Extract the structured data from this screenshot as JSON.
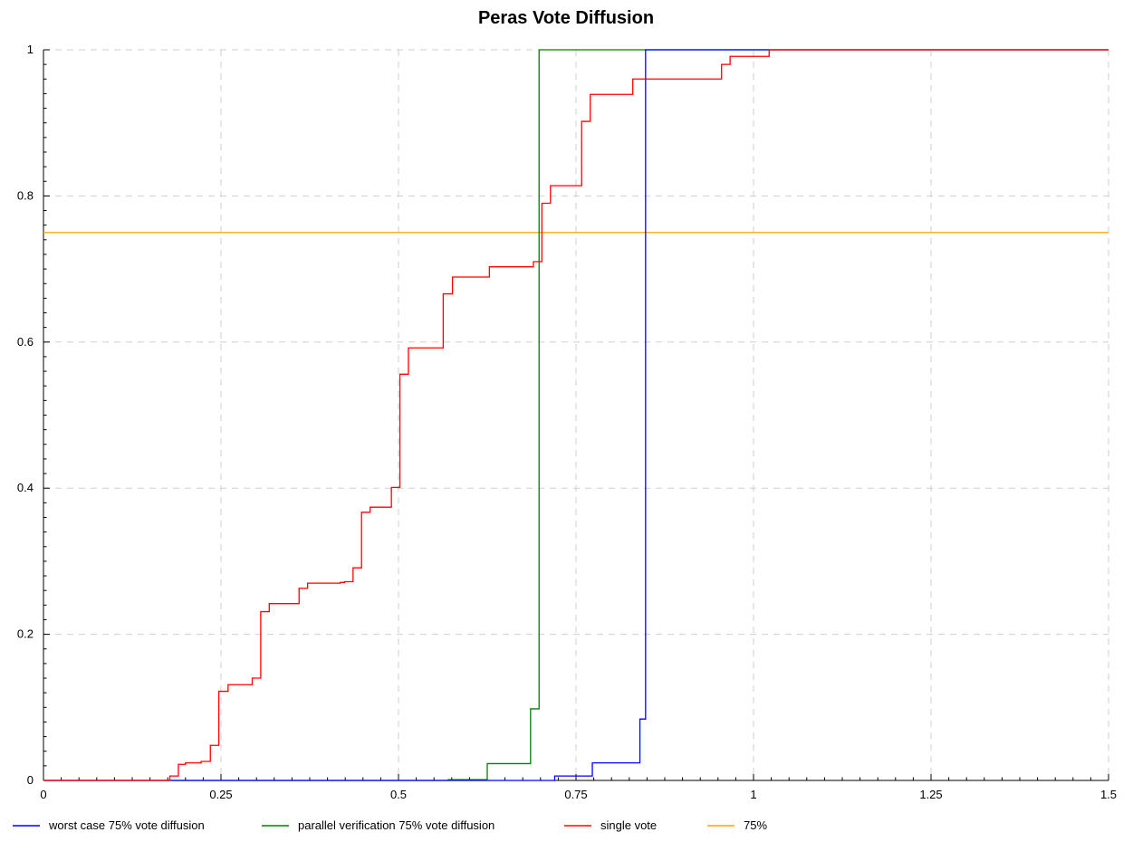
{
  "chart_data": {
    "type": "line",
    "title": "Peras Vote Diffusion",
    "xlabel": "",
    "ylabel": "",
    "xlim": [
      0,
      1.5
    ],
    "ylim": [
      0,
      1
    ],
    "x_ticks": [
      {
        "value": 0,
        "label": "0"
      },
      {
        "value": 0.25,
        "label": "0.25"
      },
      {
        "value": 0.5,
        "label": "0.5"
      },
      {
        "value": 0.75,
        "label": "0.75"
      },
      {
        "value": 1,
        "label": "1"
      },
      {
        "value": 1.25,
        "label": "1.25"
      },
      {
        "value": 1.5,
        "label": "1.5"
      }
    ],
    "y_ticks": [
      {
        "value": 0,
        "label": "0"
      },
      {
        "value": 0.2,
        "label": "0.2"
      },
      {
        "value": 0.4,
        "label": "0.4"
      },
      {
        "value": 0.6,
        "label": "0.6"
      },
      {
        "value": 0.8,
        "label": "0.8"
      },
      {
        "value": 1,
        "label": "1"
      }
    ],
    "grid": true,
    "legend_position": "bottom",
    "series": [
      {
        "name": "worst case 75% vote diffusion",
        "color": "#0000ff",
        "step": true,
        "points": [
          [
            0,
            0
          ],
          [
            0.72,
            0.006
          ],
          [
            0.773,
            0.024
          ],
          [
            0.84,
            0.084
          ],
          [
            0.848,
            1.0
          ],
          [
            1.5,
            1.0
          ]
        ]
      },
      {
        "name": "parallel verification 75% vote diffusion",
        "color": "#008000",
        "step": true,
        "points": [
          [
            0,
            0
          ],
          [
            0.57,
            0.001
          ],
          [
            0.625,
            0.023
          ],
          [
            0.686,
            0.098
          ],
          [
            0.698,
            1.0
          ],
          [
            1.5,
            1.0
          ]
        ]
      },
      {
        "name": "single vote",
        "color": "#ff0000",
        "step": true,
        "points": [
          [
            0,
            0
          ],
          [
            0.178,
            0.006
          ],
          [
            0.19,
            0.022
          ],
          [
            0.2,
            0.024
          ],
          [
            0.222,
            0.026
          ],
          [
            0.235,
            0.048
          ],
          [
            0.247,
            0.122
          ],
          [
            0.26,
            0.131
          ],
          [
            0.294,
            0.14
          ],
          [
            0.306,
            0.231
          ],
          [
            0.318,
            0.242
          ],
          [
            0.36,
            0.263
          ],
          [
            0.372,
            0.27
          ],
          [
            0.418,
            0.271
          ],
          [
            0.424,
            0.272
          ],
          [
            0.436,
            0.291
          ],
          [
            0.448,
            0.367
          ],
          [
            0.46,
            0.374
          ],
          [
            0.49,
            0.401
          ],
          [
            0.502,
            0.556
          ],
          [
            0.514,
            0.592
          ],
          [
            0.563,
            0.666
          ],
          [
            0.576,
            0.689
          ],
          [
            0.628,
            0.703
          ],
          [
            0.69,
            0.71
          ],
          [
            0.702,
            0.79
          ],
          [
            0.714,
            0.814
          ],
          [
            0.758,
            0.902
          ],
          [
            0.77,
            0.939
          ],
          [
            0.83,
            0.96
          ],
          [
            0.955,
            0.98
          ],
          [
            0.967,
            0.991
          ],
          [
            1.022,
            1.0
          ],
          [
            1.5,
            1.0
          ]
        ]
      },
      {
        "name": "75%",
        "color": "#ffa500",
        "step": false,
        "points": [
          [
            0,
            0.75
          ],
          [
            1.5,
            0.75
          ]
        ]
      }
    ]
  }
}
